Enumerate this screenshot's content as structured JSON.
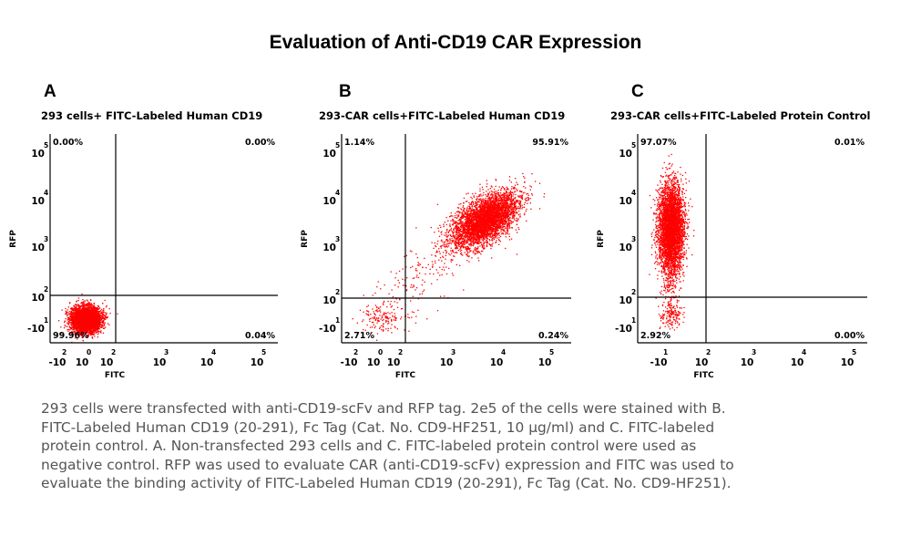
{
  "title": "Evaluation of Anti-CD19 CAR Expression",
  "colors": {
    "dots": "#ff0000",
    "axis": "#000000",
    "caption": "#555555"
  },
  "axes": {
    "ylabel": "RFP",
    "xlabel": "FITC"
  },
  "chart_data": [
    {
      "type": "scatter",
      "panel": "A",
      "title": "293 cells+ FITC-Labeled Human CD19",
      "xlabel": "FITC",
      "ylabel": "RFP",
      "scale": "biexponential",
      "x_ticks": [
        {
          "base": "-10",
          "exp": "2"
        },
        {
          "base": "10",
          "exp": "0"
        },
        {
          "base": "10",
          "exp": "2"
        },
        {
          "base": "10",
          "exp": "3"
        },
        {
          "base": "10",
          "exp": "4"
        },
        {
          "base": "10",
          "exp": "5"
        }
      ],
      "y_ticks": [
        {
          "base": "10",
          "exp": "5"
        },
        {
          "base": "10",
          "exp": "4"
        },
        {
          "base": "10",
          "exp": "3"
        },
        {
          "base": "10",
          "exp": "2"
        },
        {
          "base": "-10",
          "exp": "1"
        }
      ],
      "quadrants": {
        "upper_left": "0.00%",
        "upper_right": "0.00%",
        "lower_left": "99.96%",
        "lower_right": "0.04%"
      },
      "populations": [
        {
          "center_fitc_log": 0,
          "center_rfp_log": 0,
          "fraction": 1.0,
          "description": "double negative cluster"
        }
      ]
    },
    {
      "type": "scatter",
      "panel": "B",
      "title": "293-CAR cells+FITC-Labeled Human CD19",
      "xlabel": "FITC",
      "ylabel": "RFP",
      "scale": "biexponential",
      "x_ticks": [
        {
          "base": "-10",
          "exp": "2"
        },
        {
          "base": "10",
          "exp": "0"
        },
        {
          "base": "10",
          "exp": "2"
        },
        {
          "base": "10",
          "exp": "3"
        },
        {
          "base": "10",
          "exp": "4"
        },
        {
          "base": "10",
          "exp": "5"
        }
      ],
      "y_ticks": [
        {
          "base": "10",
          "exp": "5"
        },
        {
          "base": "10",
          "exp": "4"
        },
        {
          "base": "10",
          "exp": "3"
        },
        {
          "base": "10",
          "exp": "2"
        },
        {
          "base": "-10",
          "exp": "1"
        }
      ],
      "quadrants": {
        "upper_left": "1.14%",
        "upper_right": "95.91%",
        "lower_left": "2.71%",
        "lower_right": "0.24%"
      },
      "populations": [
        {
          "center_fitc_log": 3.8,
          "center_rfp_log": 3.6,
          "fraction": 0.96,
          "description": "RFP+ FITC+ cluster"
        },
        {
          "center_fitc_log": 0.5,
          "center_rfp_log": 0.3,
          "fraction": 0.03,
          "description": "double negative cluster"
        }
      ]
    },
    {
      "type": "scatter",
      "panel": "C",
      "title": "293-CAR cells+FITC-Labeled Protein Control",
      "xlabel": "FITC",
      "ylabel": "RFP",
      "scale": "biexponential",
      "x_ticks": [
        {
          "base": "-10",
          "exp": "1"
        },
        {
          "base": "10",
          "exp": "2"
        },
        {
          "base": "10",
          "exp": "3"
        },
        {
          "base": "10",
          "exp": "4"
        },
        {
          "base": "10",
          "exp": "5"
        }
      ],
      "y_ticks": [
        {
          "base": "10",
          "exp": "5"
        },
        {
          "base": "10",
          "exp": "4"
        },
        {
          "base": "10",
          "exp": "3"
        },
        {
          "base": "10",
          "exp": "2"
        },
        {
          "base": "-10",
          "exp": "1"
        }
      ],
      "quadrants": {
        "upper_left": "97.07%",
        "upper_right": "0.01%",
        "lower_left": "2.92%",
        "lower_right": "0.00%"
      },
      "populations": [
        {
          "center_fitc_log": 0.3,
          "center_rfp_log": 3.5,
          "fraction": 0.97,
          "description": "RFP+ FITC- cluster"
        },
        {
          "center_fitc_log": 0.3,
          "center_rfp_log": 0.3,
          "fraction": 0.03,
          "description": "double negative cluster"
        }
      ]
    }
  ],
  "caption": [
    "293 cells were transfected with anti-CD19-scFv and RFP tag. 2e5 of the cells were stained with B.",
    "FITC-Labeled Human CD19 (20-291), Fc Tag (Cat. No. CD9-HF251, 10 μg/ml) and C. FITC-labeled",
    "protein control. A. Non-transfected 293 cells and C. FITC-labeled protein control were used as",
    "negative control. RFP was used to evaluate CAR (anti-CD19-scFv) expression and FITC was used to",
    "evaluate the binding activity of FITC-Labeled Human CD19 (20-291), Fc Tag (Cat. No. CD9-HF251)."
  ]
}
